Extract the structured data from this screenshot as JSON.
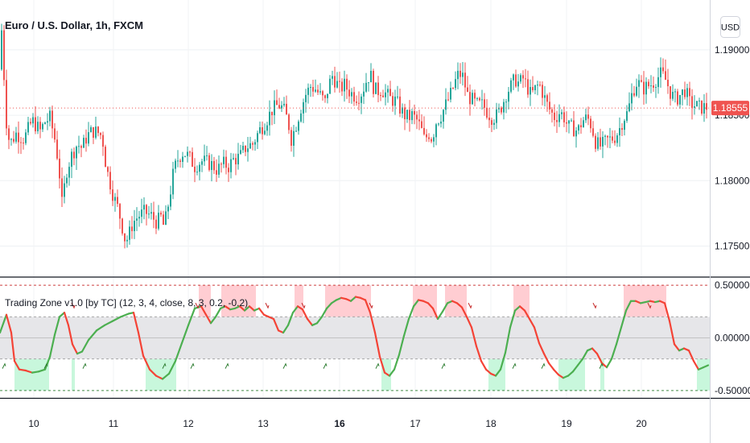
{
  "header": {
    "symbol_title": "Euro / U.S. Dollar, 1h, FXCM",
    "currency_button": "USD"
  },
  "indicator": {
    "title": "Trading Zone v1.0 [by TC] (12, 3, 4, close, 8, 3, 0.2, -0.2)"
  },
  "colors": {
    "up": "#26a69a",
    "down": "#ef5350",
    "osc_up": "#4caf50",
    "osc_down": "#f44336",
    "zone_top": "#ffcdd2",
    "zone_bottom": "#c8f7dc",
    "band": "#e6e6e9",
    "last_price_bg": "#ef5350"
  },
  "chart_data": [
    {
      "type": "candlestick",
      "title": "Euro / U.S. Dollar, 1h, FXCM",
      "x_tick_labels": [
        "10",
        "11",
        "12",
        "13",
        "16",
        "17",
        "18",
        "19",
        "20"
      ],
      "x_tick_bold": "16",
      "y_tick_labels": [
        "1.19000",
        "1.18500",
        "1.18000",
        "1.17500"
      ],
      "y_ticks": [
        1.19,
        1.185,
        1.18,
        1.175
      ],
      "ylim": [
        1.173,
        1.1935
      ],
      "last_price_label": "1.18555",
      "last_price": 1.18555,
      "close_path": [
        [
          0,
          1.1885
        ],
        [
          2,
          1.1915
        ],
        [
          8,
          1.1845
        ],
        [
          12,
          1.1828
        ],
        [
          20,
          1.1836
        ],
        [
          30,
          1.1832
        ],
        [
          40,
          1.1846
        ],
        [
          50,
          1.1838
        ],
        [
          56,
          1.1845
        ],
        [
          62,
          1.1848
        ],
        [
          68,
          1.1832
        ],
        [
          73,
          1.1812
        ],
        [
          77,
          1.1782
        ],
        [
          83,
          1.1808
        ],
        [
          88,
          1.1818
        ],
        [
          96,
          1.1828
        ],
        [
          102,
          1.1825
        ],
        [
          108,
          1.1834
        ],
        [
          115,
          1.1838
        ],
        [
          121,
          1.1837
        ],
        [
          127,
          1.1834
        ],
        [
          132,
          1.181
        ],
        [
          137,
          1.1798
        ],
        [
          141,
          1.1788
        ],
        [
          147,
          1.1778
        ],
        [
          153,
          1.1762
        ],
        [
          156,
          1.1753
        ],
        [
          160,
          1.1758
        ],
        [
          165,
          1.1768
        ],
        [
          172,
          1.1773
        ],
        [
          180,
          1.1776
        ],
        [
          188,
          1.1773
        ],
        [
          195,
          1.1768
        ],
        [
          200,
          1.1772
        ],
        [
          204,
          1.1764
        ],
        [
          210,
          1.1785
        ],
        [
          216,
          1.1808
        ],
        [
          222,
          1.1818
        ],
        [
          228,
          1.1822
        ],
        [
          235,
          1.1818
        ],
        [
          242,
          1.1811
        ],
        [
          250,
          1.1815
        ],
        [
          257,
          1.1814
        ],
        [
          264,
          1.1812
        ],
        [
          270,
          1.1808
        ],
        [
          277,
          1.1813
        ],
        [
          284,
          1.1811
        ],
        [
          290,
          1.1816
        ],
        [
          298,
          1.1818
        ],
        [
          306,
          1.1826
        ],
        [
          314,
          1.1828
        ],
        [
          322,
          1.1838
        ],
        [
          330,
          1.1845
        ],
        [
          338,
          1.1854
        ],
        [
          346,
          1.1858
        ],
        [
          352,
          1.1855
        ],
        [
          358,
          1.1845
        ],
        [
          362,
          1.1832
        ],
        [
          368,
          1.1843
        ],
        [
          374,
          1.1856
        ],
        [
          380,
          1.1866
        ],
        [
          386,
          1.1872
        ],
        [
          392,
          1.187
        ],
        [
          398,
          1.1865
        ],
        [
          404,
          1.186
        ],
        [
          408,
          1.1872
        ],
        [
          413,
          1.188
        ],
        [
          418,
          1.1875
        ],
        [
          422,
          1.187
        ],
        [
          428,
          1.1873
        ],
        [
          433,
          1.1869
        ],
        [
          438,
          1.1866
        ],
        [
          444,
          1.1864
        ],
        [
          450,
          1.1868
        ],
        [
          455,
          1.1876
        ],
        [
          460,
          1.1882
        ],
        [
          464,
          1.1872
        ],
        [
          468,
          1.1868
        ],
        [
          474,
          1.187
        ],
        [
          480,
          1.1866
        ],
        [
          486,
          1.1862
        ],
        [
          492,
          1.1861
        ],
        [
          498,
          1.1854
        ],
        [
          503,
          1.185
        ],
        [
          508,
          1.1848
        ],
        [
          512,
          1.185
        ],
        [
          518,
          1.1846
        ],
        [
          523,
          1.184
        ],
        [
          528,
          1.183
        ],
        [
          532,
          1.1837
        ],
        [
          537,
          1.1832
        ],
        [
          542,
          1.1845
        ],
        [
          548,
          1.185
        ],
        [
          554,
          1.1858
        ],
        [
          560,
          1.1866
        ],
        [
          566,
          1.1876
        ],
        [
          570,
          1.1882
        ],
        [
          576,
          1.1879
        ],
        [
          580,
          1.1866
        ],
        [
          586,
          1.1862
        ],
        [
          592,
          1.1858
        ],
        [
          600,
          1.1858
        ],
        [
          606,
          1.1852
        ],
        [
          612,
          1.1848
        ],
        [
          618,
          1.185
        ],
        [
          624,
          1.1858
        ],
        [
          630,
          1.1868
        ],
        [
          636,
          1.1873
        ],
        [
          640,
          1.1878
        ],
        [
          645,
          1.1874
        ],
        [
          650,
          1.1878
        ],
        [
          655,
          1.1872
        ],
        [
          660,
          1.1865
        ],
        [
          665,
          1.187
        ],
        [
          670,
          1.1874
        ],
        [
          675,
          1.1866
        ],
        [
          680,
          1.1858
        ],
        [
          685,
          1.1852
        ],
        [
          690,
          1.1848
        ],
        [
          695,
          1.1852
        ],
        [
          700,
          1.185
        ],
        [
          706,
          1.1841
        ],
        [
          712,
          1.184
        ],
        [
          718,
          1.1838
        ],
        [
          724,
          1.1846
        ],
        [
          730,
          1.1848
        ],
        [
          735,
          1.1842
        ],
        [
          740,
          1.183
        ],
        [
          745,
          1.1826
        ],
        [
          750,
          1.1828
        ],
        [
          755,
          1.1831
        ],
        [
          760,
          1.1832
        ],
        [
          765,
          1.1834
        ],
        [
          770,
          1.184
        ],
        [
          775,
          1.1848
        ],
        [
          780,
          1.1852
        ],
        [
          786,
          1.1868
        ],
        [
          792,
          1.1876
        ],
        [
          798,
          1.187
        ],
        [
          804,
          1.1872
        ],
        [
          810,
          1.1874
        ],
        [
          816,
          1.1878
        ],
        [
          822,
          1.1882
        ],
        [
          828,
          1.1876
        ],
        [
          834,
          1.1866
        ],
        [
          840,
          1.1862
        ],
        [
          846,
          1.1866
        ],
        [
          852,
          1.187
        ],
        [
          856,
          1.186
        ],
        [
          862,
          1.1858
        ],
        [
          868,
          1.1856
        ],
        [
          874,
          1.1856
        ],
        [
          878,
          1.1856
        ]
      ]
    },
    {
      "type": "line",
      "title": "Trading Zone v1.0 [by TC] (12, 3, 4, close, 8, 3, 0.2, -0.2)",
      "y_tick_labels": [
        "0.50000",
        "0.00000",
        "-0.50000"
      ],
      "y_ticks": [
        0.5,
        0.0,
        -0.5
      ],
      "ylim": [
        -0.57,
        0.57
      ],
      "upper_level": 0.2,
      "lower_level": -0.2,
      "upper_extreme": 0.5,
      "lower_extreme": -0.5,
      "top_zones": [
        [
          247,
          262
        ],
        [
          275,
          318
        ],
        [
          366,
          377
        ],
        [
          404,
          461
        ],
        [
          513,
          543
        ],
        [
          553,
          580
        ],
        [
          638,
          658
        ],
        [
          775,
          828
        ]
      ],
      "bottom_zones": [
        [
          18,
          61
        ],
        [
          89,
          93
        ],
        [
          181,
          219
        ],
        [
          474,
          486
        ],
        [
          607,
          628
        ],
        [
          694,
          727
        ],
        [
          746,
          751
        ],
        [
          866,
          882
        ]
      ],
      "series": [
        {
          "values": [
            [
              0,
              0.05
            ],
            [
              8,
              0.22
            ],
            [
              14,
              0.05
            ],
            [
              18,
              -0.22
            ],
            [
              24,
              -0.3
            ],
            [
              32,
              -0.31
            ],
            [
              40,
              -0.33
            ],
            [
              48,
              -0.32
            ],
            [
              56,
              -0.3
            ],
            [
              62,
              -0.18
            ],
            [
              68,
              0.03
            ],
            [
              74,
              0.2
            ],
            [
              80,
              0.24
            ],
            [
              85,
              0.12
            ],
            [
              90,
              -0.06
            ],
            [
              96,
              -0.15
            ],
            [
              102,
              -0.13
            ],
            [
              110,
              -0.02
            ],
            [
              120,
              0.07
            ],
            [
              130,
              0.12
            ],
            [
              140,
              0.16
            ],
            [
              150,
              0.2
            ],
            [
              160,
              0.23
            ],
            [
              166,
              0.24
            ],
            [
              172,
              0.05
            ],
            [
              178,
              -0.17
            ],
            [
              186,
              -0.3
            ],
            [
              194,
              -0.36
            ],
            [
              202,
              -0.39
            ],
            [
              210,
              -0.34
            ],
            [
              218,
              -0.22
            ],
            [
              226,
              -0.05
            ],
            [
              234,
              0.12
            ],
            [
              242,
              0.28
            ],
            [
              250,
              0.3
            ],
            [
              256,
              0.22
            ],
            [
              262,
              0.14
            ],
            [
              268,
              0.2
            ],
            [
              274,
              0.28
            ],
            [
              280,
              0.3
            ],
            [
              286,
              0.27
            ],
            [
              292,
              0.28
            ],
            [
              298,
              0.3
            ],
            [
              304,
              0.26
            ],
            [
              310,
              0.3
            ],
            [
              316,
              0.26
            ],
            [
              322,
              0.28
            ],
            [
              328,
              0.22
            ],
            [
              334,
              0.2
            ],
            [
              340,
              0.18
            ],
            [
              346,
              0.07
            ],
            [
              352,
              0.05
            ],
            [
              358,
              0.12
            ],
            [
              364,
              0.24
            ],
            [
              370,
              0.3
            ],
            [
              376,
              0.27
            ],
            [
              382,
              0.18
            ],
            [
              388,
              0.12
            ],
            [
              394,
              0.14
            ],
            [
              400,
              0.2
            ],
            [
              406,
              0.28
            ],
            [
              412,
              0.33
            ],
            [
              418,
              0.36
            ],
            [
              424,
              0.38
            ],
            [
              430,
              0.37
            ],
            [
              436,
              0.35
            ],
            [
              442,
              0.39
            ],
            [
              448,
              0.38
            ],
            [
              454,
              0.36
            ],
            [
              460,
              0.24
            ],
            [
              466,
              0.05
            ],
            [
              472,
              -0.18
            ],
            [
              478,
              -0.33
            ],
            [
              484,
              -0.36
            ],
            [
              490,
              -0.3
            ],
            [
              496,
              -0.16
            ],
            [
              502,
              0.02
            ],
            [
              508,
              0.18
            ],
            [
              514,
              0.3
            ],
            [
              520,
              0.36
            ],
            [
              526,
              0.35
            ],
            [
              532,
              0.33
            ],
            [
              538,
              0.28
            ],
            [
              544,
              0.18
            ],
            [
              550,
              0.25
            ],
            [
              556,
              0.33
            ],
            [
              562,
              0.35
            ],
            [
              568,
              0.33
            ],
            [
              574,
              0.29
            ],
            [
              580,
              0.2
            ],
            [
              586,
              0.1
            ],
            [
              592,
              -0.08
            ],
            [
              598,
              -0.22
            ],
            [
              604,
              -0.3
            ],
            [
              610,
              -0.34
            ],
            [
              616,
              -0.36
            ],
            [
              622,
              -0.3
            ],
            [
              628,
              -0.14
            ],
            [
              634,
              0.1
            ],
            [
              640,
              0.26
            ],
            [
              646,
              0.3
            ],
            [
              652,
              0.26
            ],
            [
              658,
              0.18
            ],
            [
              664,
              0.1
            ],
            [
              670,
              -0.05
            ],
            [
              676,
              -0.15
            ],
            [
              682,
              -0.24
            ],
            [
              688,
              -0.3
            ],
            [
              694,
              -0.35
            ],
            [
              700,
              -0.38
            ],
            [
              706,
              -0.36
            ],
            [
              712,
              -0.32
            ],
            [
              718,
              -0.26
            ],
            [
              724,
              -0.2
            ],
            [
              730,
              -0.12
            ],
            [
              736,
              -0.1
            ],
            [
              742,
              -0.15
            ],
            [
              748,
              -0.24
            ],
            [
              754,
              -0.28
            ],
            [
              760,
              -0.2
            ],
            [
              766,
              -0.06
            ],
            [
              772,
              0.1
            ],
            [
              778,
              0.26
            ],
            [
              784,
              0.35
            ],
            [
              790,
              0.35
            ],
            [
              796,
              0.33
            ],
            [
              802,
              0.34
            ],
            [
              808,
              0.35
            ],
            [
              814,
              0.34
            ],
            [
              820,
              0.35
            ],
            [
              826,
              0.33
            ],
            [
              832,
              0.16
            ],
            [
              838,
              -0.06
            ],
            [
              844,
              -0.12
            ],
            [
              850,
              -0.1
            ],
            [
              856,
              -0.12
            ],
            [
              862,
              -0.22
            ],
            [
              868,
              -0.3
            ],
            [
              874,
              -0.28
            ],
            [
              880,
              -0.26
            ]
          ]
        }
      ]
    }
  ]
}
